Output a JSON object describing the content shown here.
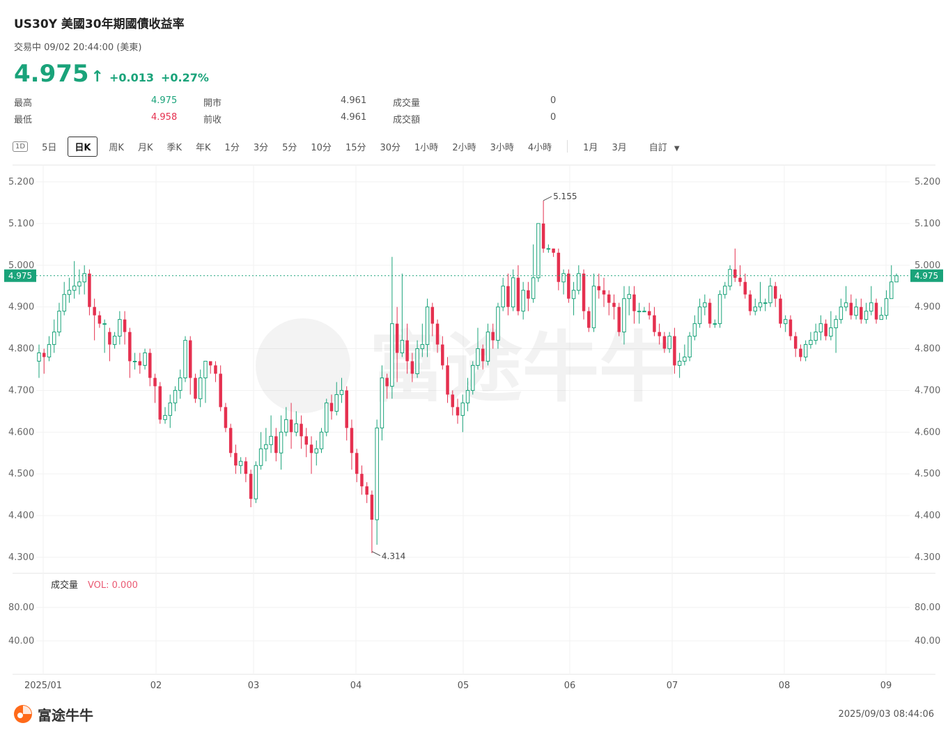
{
  "header": {
    "title": "US30Y  美國30年期國債收益率",
    "status": "交易中 09/02 20:44:00 (美東)",
    "price": "4.975",
    "arrow": "↑",
    "change": "+0.013",
    "change_pct": "+0.27%"
  },
  "stats": [
    {
      "label": "最高",
      "value": "4.975",
      "tone": "up"
    },
    {
      "label": "最低",
      "value": "4.958",
      "tone": "down"
    },
    {
      "label": "開市",
      "value": "4.961"
    },
    {
      "label": "前收",
      "value": "4.961"
    },
    {
      "label": "成交量",
      "value": "0"
    },
    {
      "label": "成交額",
      "value": "0"
    }
  ],
  "tabs": {
    "icon_label": "1D",
    "group1": [
      "5日",
      "日K",
      "周K",
      "月K",
      "季K",
      "年K",
      "1分",
      "3分",
      "5分",
      "10分",
      "15分",
      "30分",
      "1小時",
      "2小時",
      "3小時",
      "4小時"
    ],
    "group2": [
      "1月",
      "3月",
      "自訂"
    ],
    "active": "日K",
    "dropdown_icon": "caret-down-icon"
  },
  "chart_data": {
    "type": "candlestick",
    "y_ticks": [
      "5.200",
      "5.100",
      "5.000",
      "4.900",
      "4.800",
      "4.700",
      "4.600",
      "4.500",
      "4.400",
      "4.300"
    ],
    "ylim": [
      4.28,
      5.23
    ],
    "x_ticks": [
      "2025/01",
      "02",
      "03",
      "04",
      "05",
      "06",
      "07",
      "08",
      "09"
    ],
    "current_price_label": "4.975",
    "current_price": 4.975,
    "high_annotation": "5.155",
    "high_value": 5.155,
    "low_annotation": "4.314",
    "low_value": 4.314,
    "volume_panel": {
      "label": "成交量",
      "vol_text": "VOL: 0.000",
      "y_ticks": [
        "80.00",
        "40.00"
      ]
    },
    "colors": {
      "up": "#1aa37a",
      "down": "#e5304f",
      "grid": "#f0f0f0",
      "price_line": "#1aa37a"
    },
    "candles": [
      [
        4.77,
        4.79,
        4.81,
        4.73
      ],
      [
        4.79,
        4.78,
        4.8,
        4.74
      ],
      [
        4.78,
        4.81,
        4.83,
        4.77
      ],
      [
        4.81,
        4.84,
        4.87,
        4.79
      ],
      [
        4.84,
        4.89,
        4.91,
        4.83
      ],
      [
        4.89,
        4.93,
        4.96,
        4.88
      ],
      [
        4.93,
        4.94,
        4.97,
        4.91
      ],
      [
        4.94,
        4.95,
        5.01,
        4.92
      ],
      [
        4.95,
        4.96,
        4.99,
        4.93
      ],
      [
        4.96,
        4.98,
        5.0,
        4.93
      ],
      [
        4.98,
        4.9,
        4.99,
        4.88
      ],
      [
        4.9,
        4.88,
        4.92,
        4.82
      ],
      [
        4.88,
        4.86,
        4.89,
        4.85
      ],
      [
        4.86,
        4.86,
        4.87,
        4.79
      ],
      [
        4.84,
        4.81,
        4.85,
        4.77
      ],
      [
        4.81,
        4.83,
        4.84,
        4.8
      ],
      [
        4.83,
        4.87,
        4.89,
        4.81
      ],
      [
        4.87,
        4.84,
        4.89,
        4.81
      ],
      [
        4.84,
        4.77,
        4.85,
        4.73
      ],
      [
        4.77,
        4.77,
        4.79,
        4.75
      ],
      [
        4.77,
        4.76,
        4.79,
        4.74
      ],
      [
        4.76,
        4.79,
        4.8,
        4.75
      ],
      [
        4.79,
        4.73,
        4.8,
        4.71
      ],
      [
        4.73,
        4.71,
        4.74,
        4.67
      ],
      [
        4.71,
        4.63,
        4.72,
        4.62
      ],
      [
        4.63,
        4.64,
        4.66,
        4.62
      ],
      [
        4.64,
        4.67,
        4.69,
        4.61
      ],
      [
        4.67,
        4.7,
        4.71,
        4.65
      ],
      [
        4.7,
        4.73,
        4.75,
        4.68
      ],
      [
        4.73,
        4.82,
        4.83,
        4.72
      ],
      [
        4.82,
        4.73,
        4.83,
        4.69
      ],
      [
        4.73,
        4.68,
        4.74,
        4.67
      ],
      [
        4.68,
        4.73,
        4.75,
        4.66
      ],
      [
        4.73,
        4.77,
        4.77,
        4.67
      ],
      [
        4.77,
        4.76,
        4.77,
        4.74
      ],
      [
        4.76,
        4.74,
        4.77,
        4.72
      ],
      [
        4.74,
        4.66,
        4.76,
        4.65
      ],
      [
        4.66,
        4.61,
        4.67,
        4.6
      ],
      [
        4.61,
        4.55,
        4.62,
        4.54
      ],
      [
        4.55,
        4.52,
        4.57,
        4.5
      ],
      [
        4.52,
        4.53,
        4.54,
        4.5
      ],
      [
        4.53,
        4.5,
        4.54,
        4.48
      ],
      [
        4.5,
        4.44,
        4.51,
        4.42
      ],
      [
        4.44,
        4.52,
        4.53,
        4.43
      ],
      [
        4.52,
        4.56,
        4.6,
        4.51
      ],
      [
        4.56,
        4.57,
        4.61,
        4.53
      ],
      [
        4.57,
        4.59,
        4.64,
        4.55
      ],
      [
        4.59,
        4.55,
        4.61,
        4.53
      ],
      [
        4.55,
        4.6,
        4.64,
        4.51
      ],
      [
        4.6,
        4.63,
        4.66,
        4.59
      ],
      [
        4.63,
        4.6,
        4.67,
        4.56
      ],
      [
        4.6,
        4.62,
        4.65,
        4.59
      ],
      [
        4.62,
        4.59,
        4.64,
        4.56
      ],
      [
        4.59,
        4.57,
        4.61,
        4.54
      ],
      [
        4.57,
        4.55,
        4.59,
        4.5
      ],
      [
        4.55,
        4.56,
        4.58,
        4.52
      ],
      [
        4.56,
        4.6,
        4.61,
        4.55
      ],
      [
        4.6,
        4.67,
        4.68,
        4.59
      ],
      [
        4.67,
        4.65,
        4.69,
        4.63
      ],
      [
        4.65,
        4.69,
        4.72,
        4.64
      ],
      [
        4.69,
        4.7,
        4.73,
        4.67
      ],
      [
        4.7,
        4.61,
        4.71,
        4.58
      ],
      [
        4.61,
        4.55,
        4.63,
        4.51
      ],
      [
        4.55,
        4.5,
        4.56,
        4.48
      ],
      [
        4.5,
        4.47,
        4.52,
        4.45
      ],
      [
        4.47,
        4.45,
        4.48,
        4.43
      ],
      [
        4.45,
        4.39,
        4.46,
        4.31
      ],
      [
        4.39,
        4.61,
        4.63,
        4.33
      ],
      [
        4.61,
        4.73,
        4.76,
        4.58
      ],
      [
        4.73,
        4.71,
        4.74,
        4.68
      ],
      [
        4.71,
        4.86,
        5.02,
        4.68
      ],
      [
        4.86,
        4.79,
        4.9,
        4.72
      ],
      [
        4.79,
        4.82,
        4.98,
        4.78
      ],
      [
        4.82,
        4.77,
        4.86,
        4.74
      ],
      [
        4.77,
        4.74,
        4.79,
        4.72
      ],
      [
        4.74,
        4.8,
        4.82,
        4.73
      ],
      [
        4.8,
        4.81,
        4.86,
        4.78
      ],
      [
        4.81,
        4.9,
        4.92,
        4.78
      ],
      [
        4.9,
        4.86,
        4.91,
        4.83
      ],
      [
        4.86,
        4.81,
        4.87,
        4.79
      ],
      [
        4.81,
        4.76,
        4.83,
        4.75
      ],
      [
        4.76,
        4.69,
        4.78,
        4.67
      ],
      [
        4.69,
        4.66,
        4.7,
        4.64
      ],
      [
        4.66,
        4.64,
        4.68,
        4.62
      ],
      [
        4.64,
        4.67,
        4.69,
        4.6
      ],
      [
        4.67,
        4.7,
        4.73,
        4.65
      ],
      [
        4.7,
        4.76,
        4.77,
        4.69
      ],
      [
        4.76,
        4.8,
        4.85,
        4.75
      ],
      [
        4.8,
        4.77,
        4.81,
        4.75
      ],
      [
        4.77,
        4.84,
        4.86,
        4.76
      ],
      [
        4.84,
        4.82,
        4.86,
        4.8
      ],
      [
        4.82,
        4.9,
        4.91,
        4.8
      ],
      [
        4.9,
        4.95,
        4.97,
        4.89
      ],
      [
        4.95,
        4.9,
        4.98,
        4.88
      ],
      [
        4.9,
        4.97,
        4.99,
        4.89
      ],
      [
        4.97,
        4.89,
        5.0,
        4.88
      ],
      [
        4.89,
        4.94,
        4.96,
        4.87
      ],
      [
        4.94,
        4.92,
        4.96,
        4.89
      ],
      [
        4.92,
        4.97,
        5.05,
        4.91
      ],
      [
        4.97,
        5.1,
        5.1,
        4.96
      ],
      [
        5.1,
        5.04,
        5.155,
        5.03
      ],
      [
        5.04,
        5.04,
        5.05,
        5.03
      ],
      [
        5.04,
        5.03,
        5.04,
        5.02
      ],
      [
        5.03,
        4.96,
        5.04,
        4.94
      ],
      [
        4.96,
        4.98,
        4.99,
        4.93
      ],
      [
        4.98,
        4.92,
        4.99,
        4.91
      ],
      [
        4.92,
        4.94,
        4.96,
        4.88
      ],
      [
        4.94,
        4.98,
        5.0,
        4.93
      ],
      [
        4.98,
        4.89,
        4.99,
        4.87
      ],
      [
        4.89,
        4.85,
        4.9,
        4.84
      ],
      [
        4.85,
        4.95,
        4.98,
        4.84
      ],
      [
        4.95,
        4.94,
        4.98,
        4.92
      ],
      [
        4.94,
        4.93,
        4.97,
        4.9
      ],
      [
        4.93,
        4.91,
        4.94,
        4.88
      ],
      [
        4.91,
        4.9,
        4.93,
        4.87
      ],
      [
        4.9,
        4.84,
        4.91,
        4.83
      ],
      [
        4.84,
        4.92,
        4.95,
        4.81
      ],
      [
        4.92,
        4.93,
        4.95,
        4.88
      ],
      [
        4.93,
        4.89,
        4.95,
        4.86
      ],
      [
        4.89,
        4.89,
        4.91,
        4.86
      ],
      [
        4.89,
        4.89,
        4.9,
        4.89
      ],
      [
        4.89,
        4.88,
        4.91,
        4.87
      ],
      [
        4.88,
        4.84,
        4.9,
        4.83
      ],
      [
        4.84,
        4.83,
        4.86,
        4.81
      ],
      [
        4.83,
        4.8,
        4.84,
        4.79
      ],
      [
        4.8,
        4.83,
        4.84,
        4.79
      ],
      [
        4.83,
        4.76,
        4.85,
        4.74
      ],
      [
        4.76,
        4.77,
        4.79,
        4.73
      ],
      [
        4.77,
        4.78,
        4.81,
        4.76
      ],
      [
        4.78,
        4.83,
        4.84,
        4.77
      ],
      [
        4.83,
        4.86,
        4.88,
        4.82
      ],
      [
        4.86,
        4.9,
        4.92,
        4.85
      ],
      [
        4.9,
        4.91,
        4.93,
        4.88
      ],
      [
        4.91,
        4.86,
        4.92,
        4.85
      ],
      [
        4.86,
        4.86,
        4.87,
        4.85
      ],
      [
        4.86,
        4.93,
        4.94,
        4.85
      ],
      [
        4.93,
        4.95,
        4.96,
        4.92
      ],
      [
        4.95,
        4.99,
        5.0,
        4.94
      ],
      [
        4.99,
        4.97,
        5.04,
        4.96
      ],
      [
        4.97,
        4.96,
        5.0,
        4.95
      ],
      [
        4.96,
        4.93,
        4.98,
        4.92
      ],
      [
        4.93,
        4.89,
        4.94,
        4.88
      ],
      [
        4.89,
        4.9,
        4.92,
        4.88
      ],
      [
        4.9,
        4.91,
        4.96,
        4.89
      ],
      [
        4.91,
        4.91,
        4.92,
        4.89
      ],
      [
        4.91,
        4.95,
        4.97,
        4.9
      ],
      [
        4.95,
        4.92,
        4.96,
        4.9
      ],
      [
        4.92,
        4.86,
        4.93,
        4.85
      ],
      [
        4.86,
        4.87,
        4.88,
        4.84
      ],
      [
        4.87,
        4.83,
        4.88,
        4.82
      ],
      [
        4.83,
        4.8,
        4.84,
        4.78
      ],
      [
        4.8,
        4.78,
        4.81,
        4.77
      ],
      [
        4.78,
        4.81,
        4.82,
        4.77
      ],
      [
        4.81,
        4.82,
        4.84,
        4.8
      ],
      [
        4.82,
        4.84,
        4.86,
        4.81
      ],
      [
        4.84,
        4.86,
        4.88,
        4.82
      ],
      [
        4.86,
        4.83,
        4.87,
        4.82
      ],
      [
        4.83,
        4.85,
        4.89,
        4.82
      ],
      [
        4.85,
        4.87,
        4.88,
        4.79
      ],
      [
        4.87,
        4.9,
        4.92,
        4.86
      ],
      [
        4.9,
        4.91,
        4.95,
        4.89
      ],
      [
        4.91,
        4.88,
        4.93,
        4.87
      ],
      [
        4.88,
        4.9,
        4.92,
        4.87
      ],
      [
        4.9,
        4.87,
        4.92,
        4.86
      ],
      [
        4.87,
        4.89,
        4.91,
        4.86
      ],
      [
        4.89,
        4.91,
        4.95,
        4.88
      ],
      [
        4.91,
        4.87,
        4.92,
        4.86
      ],
      [
        4.87,
        4.88,
        4.9,
        4.87
      ],
      [
        4.88,
        4.92,
        4.94,
        4.87
      ],
      [
        4.92,
        4.96,
        5.0,
        4.92
      ],
      [
        4.96,
        4.975,
        4.98,
        4.96
      ]
    ]
  },
  "footer": {
    "brand": "富途牛牛",
    "timestamp": "2025/09/03 08:44:06"
  }
}
